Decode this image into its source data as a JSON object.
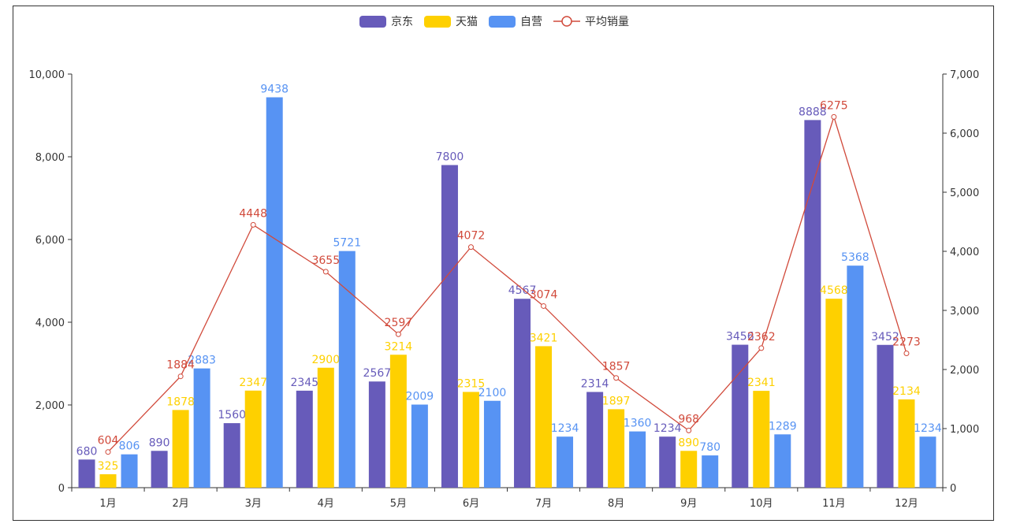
{
  "chart_data": {
    "type": "bar",
    "categories": [
      "1月",
      "2月",
      "3月",
      "4月",
      "5月",
      "6月",
      "7月",
      "8月",
      "9月",
      "10月",
      "11月",
      "12月"
    ],
    "series": [
      {
        "name": "京东",
        "type": "bar",
        "axis": "left",
        "color": "#675bba",
        "values": [
          680,
          890,
          1560,
          2345,
          2567,
          7800,
          4567,
          2314,
          1234,
          3456,
          8888,
          3452
        ]
      },
      {
        "name": "天猫",
        "type": "bar",
        "axis": "left",
        "color": "#fed000",
        "values": [
          325,
          1878,
          2347,
          2900,
          3214,
          2315,
          3421,
          1897,
          890,
          2341,
          4568,
          2134
        ]
      },
      {
        "name": "自营",
        "type": "bar",
        "axis": "left",
        "color": "#5793f3",
        "values": [
          806,
          2883,
          9438,
          5721,
          2009,
          2100,
          1234,
          1360,
          780,
          1289,
          5368,
          1234
        ]
      },
      {
        "name": "平均销量",
        "type": "line",
        "axis": "right",
        "color": "#d14a3b",
        "values": [
          604,
          1884,
          4448,
          3655,
          2597,
          4072,
          3074,
          1857,
          968,
          2362,
          6275,
          2273
        ]
      }
    ],
    "yleft": {
      "min": 0,
      "max": 10000,
      "ticks": [
        "0",
        "2,000",
        "4,000",
        "6,000",
        "8,000",
        "10,000"
      ]
    },
    "yright": {
      "min": 0,
      "max": 7000,
      "ticks": [
        "0",
        "1,000",
        "2,000",
        "3,000",
        "4,000",
        "5,000",
        "6,000",
        "7,000"
      ]
    },
    "legend": "top-center",
    "grid": false
  }
}
